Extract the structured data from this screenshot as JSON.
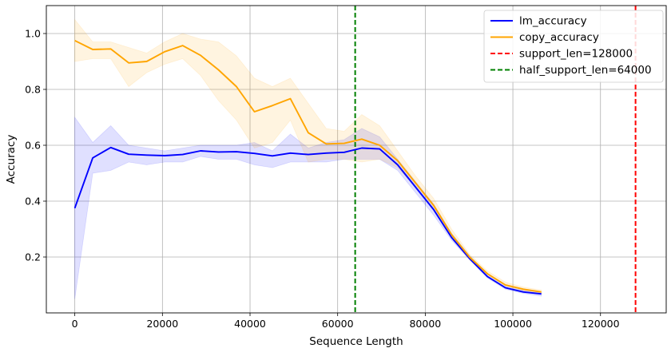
{
  "chart_data": {
    "type": "line",
    "xlabel": "Sequence Length",
    "ylabel": "Accuracy",
    "xlim": [
      -6500,
      135000
    ],
    "ylim": [
      0.0,
      1.1
    ],
    "x_ticks": [
      0,
      20000,
      40000,
      60000,
      80000,
      100000,
      120000
    ],
    "y_ticks": [
      0.2,
      0.4,
      0.6,
      0.8,
      1.0
    ],
    "grid": true,
    "legend_position": "top-right",
    "series": [
      {
        "name": "lm_accuracy",
        "color": "#0000ff",
        "x": [
          0,
          4100,
          8200,
          12300,
          16400,
          20500,
          24600,
          28700,
          32800,
          36900,
          41000,
          45100,
          49200,
          53300,
          57400,
          61500,
          65500,
          69600,
          73700,
          77800,
          81900,
          86000,
          90100,
          94200,
          98300,
          102400,
          106500
        ],
        "y": [
          0.375,
          0.555,
          0.592,
          0.568,
          0.565,
          0.563,
          0.567,
          0.58,
          0.576,
          0.577,
          0.571,
          0.562,
          0.572,
          0.567,
          0.572,
          0.575,
          0.59,
          0.587,
          0.53,
          0.45,
          0.37,
          0.27,
          0.195,
          0.13,
          0.09,
          0.075,
          0.068
        ],
        "band_low": [
          0.05,
          0.5,
          0.51,
          0.54,
          0.53,
          0.54,
          0.54,
          0.56,
          0.55,
          0.55,
          0.53,
          0.52,
          0.54,
          0.54,
          0.54,
          0.55,
          0.55,
          0.55,
          0.51,
          0.43,
          0.35,
          0.26,
          0.19,
          0.125,
          0.085,
          0.07,
          0.06
        ],
        "band_high": [
          0.7,
          0.61,
          0.67,
          0.6,
          0.59,
          0.58,
          0.59,
          0.6,
          0.6,
          0.6,
          0.61,
          0.58,
          0.64,
          0.59,
          0.61,
          0.62,
          0.66,
          0.63,
          0.55,
          0.47,
          0.39,
          0.285,
          0.205,
          0.14,
          0.1,
          0.082,
          0.074
        ]
      },
      {
        "name": "copy_accuracy",
        "color": "#ffa500",
        "x": [
          0,
          4100,
          8200,
          12300,
          16400,
          20500,
          24600,
          28700,
          32800,
          36900,
          41000,
          45100,
          49200,
          53300,
          57400,
          61500,
          65500,
          69600,
          73700,
          77800,
          81900,
          86000,
          90100,
          94200,
          98300,
          102400,
          106500
        ],
        "y": [
          0.975,
          0.943,
          0.945,
          0.895,
          0.9,
          0.935,
          0.957,
          0.922,
          0.87,
          0.81,
          0.72,
          0.742,
          0.767,
          0.645,
          0.605,
          0.607,
          0.622,
          0.6,
          0.545,
          0.465,
          0.385,
          0.28,
          0.2,
          0.14,
          0.1,
          0.085,
          0.075
        ],
        "band_low": [
          0.9,
          0.91,
          0.91,
          0.81,
          0.86,
          0.89,
          0.91,
          0.85,
          0.76,
          0.69,
          0.59,
          0.61,
          0.69,
          0.54,
          0.55,
          0.55,
          0.54,
          0.55,
          0.52,
          0.45,
          0.37,
          0.27,
          0.19,
          0.13,
          0.09,
          0.078,
          0.07
        ],
        "band_high": [
          1.05,
          0.97,
          0.97,
          0.95,
          0.93,
          0.97,
          1.0,
          0.98,
          0.97,
          0.92,
          0.84,
          0.81,
          0.84,
          0.75,
          0.66,
          0.65,
          0.71,
          0.67,
          0.58,
          0.49,
          0.41,
          0.3,
          0.21,
          0.15,
          0.11,
          0.092,
          0.082
        ]
      }
    ],
    "vlines": [
      {
        "name": "support_len=128000",
        "x": 128000,
        "color": "#ff0000",
        "style": "dashed"
      },
      {
        "name": "half_support_len=64000",
        "x": 64000,
        "color": "#008000",
        "style": "dashed"
      }
    ]
  }
}
